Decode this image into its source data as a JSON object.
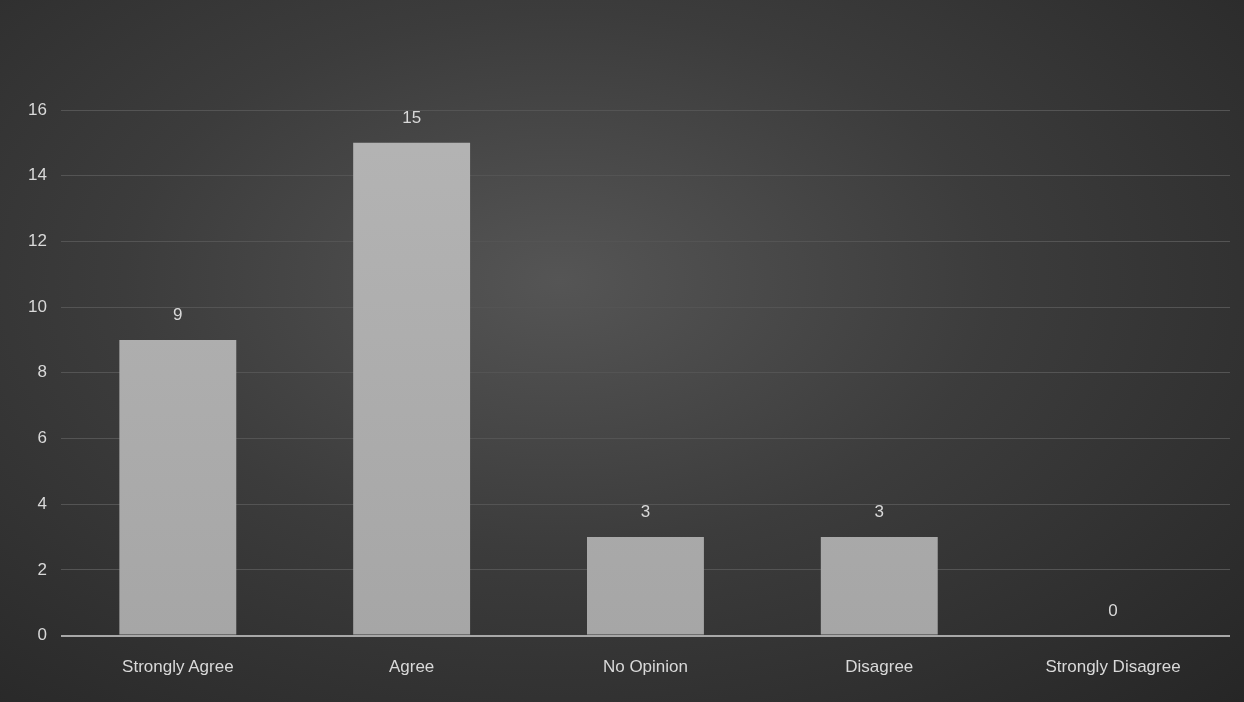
{
  "chart_data": {
    "type": "bar",
    "categories": [
      "Strongly Agree",
      "Agree",
      "No Opinion",
      "Disagree",
      "Strongly Disagree"
    ],
    "values": [
      9,
      15,
      3,
      3,
      0
    ],
    "color": "#a6a6a6",
    "ylim": [
      0,
      16
    ],
    "yticks": [
      0,
      2,
      4,
      6,
      8,
      10,
      12,
      14,
      16
    ],
    "grid": "y",
    "data_labels": true
  }
}
